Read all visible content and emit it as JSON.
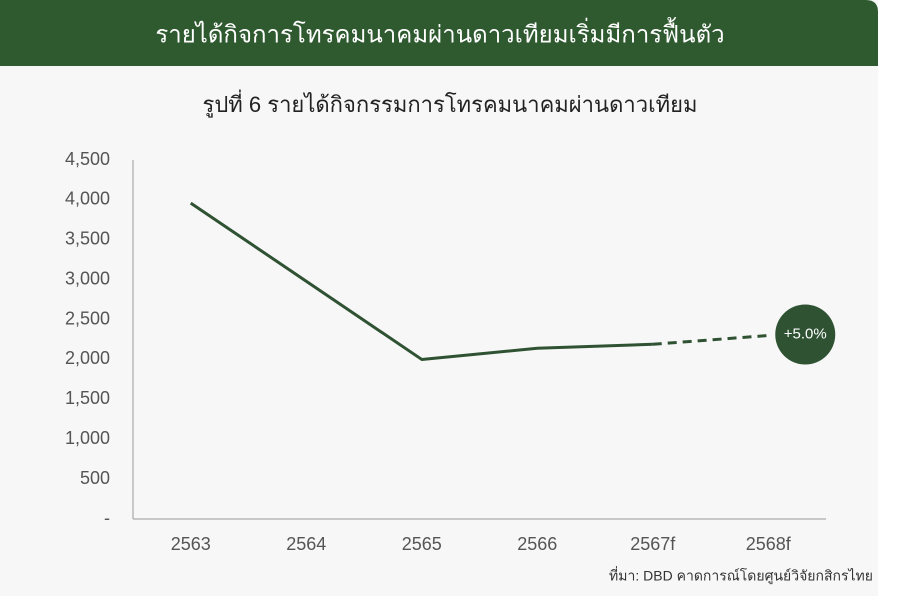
{
  "chart_data": {
    "type": "line",
    "header": "รายได้กิจการโทรคมนาคมผ่านดาวเทียมเริ่มมีการฟื้นตัว",
    "title": "รูปที่ 6 รายได้กิจกรรมการโทรคมนาคมผ่านดาวเทียม",
    "categories": [
      "2563",
      "2564",
      "2565",
      "2566",
      "2567f",
      "2568f"
    ],
    "series": [
      {
        "color": "#2f5233",
        "dashed": false,
        "values": [
          3960,
          2980,
          2000,
          2140,
          2190,
          null
        ]
      },
      {
        "color": "#2f5233",
        "dashed": true,
        "values": [
          null,
          null,
          null,
          null,
          2190,
          2300
        ]
      }
    ],
    "annotation": "+5.0%",
    "ylim": [
      0,
      4500
    ],
    "yticks": [
      {
        "value": 0,
        "label": "-"
      },
      500,
      {
        "value": 1000,
        "label": "1,000"
      },
      {
        "value": 1500,
        "label": "1,500"
      },
      {
        "value": 2000,
        "label": "2,000"
      },
      {
        "value": 2500,
        "label": "2,500"
      },
      {
        "value": 3000,
        "label": "3,000"
      },
      {
        "value": 3500,
        "label": "3,500"
      },
      {
        "value": 4000,
        "label": "4,000"
      },
      {
        "value": 4500,
        "label": "4,500"
      }
    ],
    "grid": false,
    "source": "ที่มา: DBD คาดการณ์โดยศูนย์วิจัยกสิกรไทย"
  }
}
